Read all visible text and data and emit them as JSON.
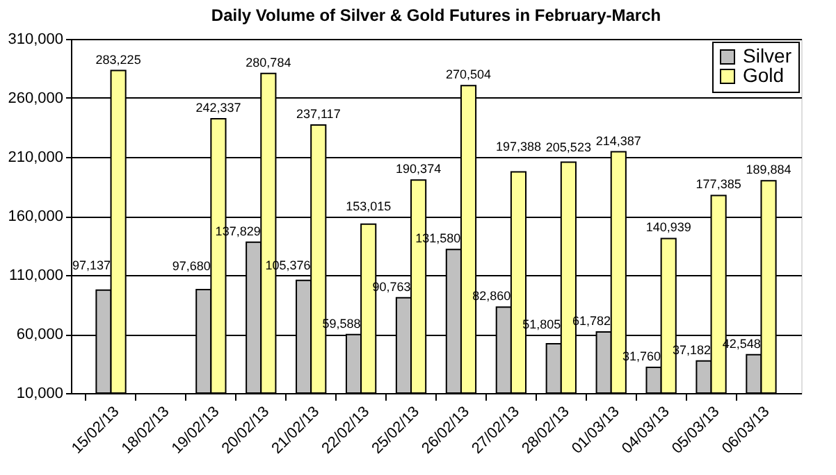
{
  "chart_data": {
    "type": "bar",
    "title": "Daily Volume of  Silver & Gold Futures in February-March",
    "categories": [
      "15/02/13",
      "18/02/13",
      "19/02/13",
      "20/02/13",
      "21/02/13",
      "22/02/13",
      "25/02/13",
      "26/02/13",
      "27/02/13",
      "28/02/13",
      "01/03/13",
      "04/03/13",
      "05/03/13",
      "06/03/13"
    ],
    "series": [
      {
        "name": "Silver",
        "color": "#c0c0c0",
        "values": [
          97137,
          null,
          97680,
          137829,
          105376,
          59588,
          90763,
          131580,
          82860,
          51805,
          61782,
          31760,
          37182,
          42548
        ],
        "value_labels": [
          "97,137",
          null,
          "97,680",
          "137,829",
          "105,376",
          "59,588",
          "90,763",
          "131,580",
          "82,860",
          "51,805",
          "61,782",
          "31,760",
          "37,182",
          "42,548"
        ]
      },
      {
        "name": "Gold",
        "color": "#ffff99",
        "values": [
          283225,
          null,
          242337,
          280784,
          237117,
          153015,
          190374,
          270504,
          197388,
          205523,
          214387,
          140939,
          177385,
          189884
        ],
        "value_labels": [
          "283,225",
          null,
          "242,337",
          "280,784",
          "237,117",
          "153,015",
          "190,374",
          "270,504",
          "197,388",
          "205,523",
          "214,387",
          "140,939",
          "177,385",
          "189,884"
        ]
      }
    ],
    "ylim": [
      10000,
      310000
    ],
    "yticks": [
      {
        "value": 10000,
        "label": "10,000"
      },
      {
        "value": 60000,
        "label": "60,000"
      },
      {
        "value": 110000,
        "label": "110,000"
      },
      {
        "value": 160000,
        "label": "160,000"
      },
      {
        "value": 210000,
        "label": "210,000"
      },
      {
        "value": 260000,
        "label": "260,000"
      },
      {
        "value": 310000,
        "label": "310,000"
      }
    ],
    "grid": "y",
    "legend": "top right"
  }
}
